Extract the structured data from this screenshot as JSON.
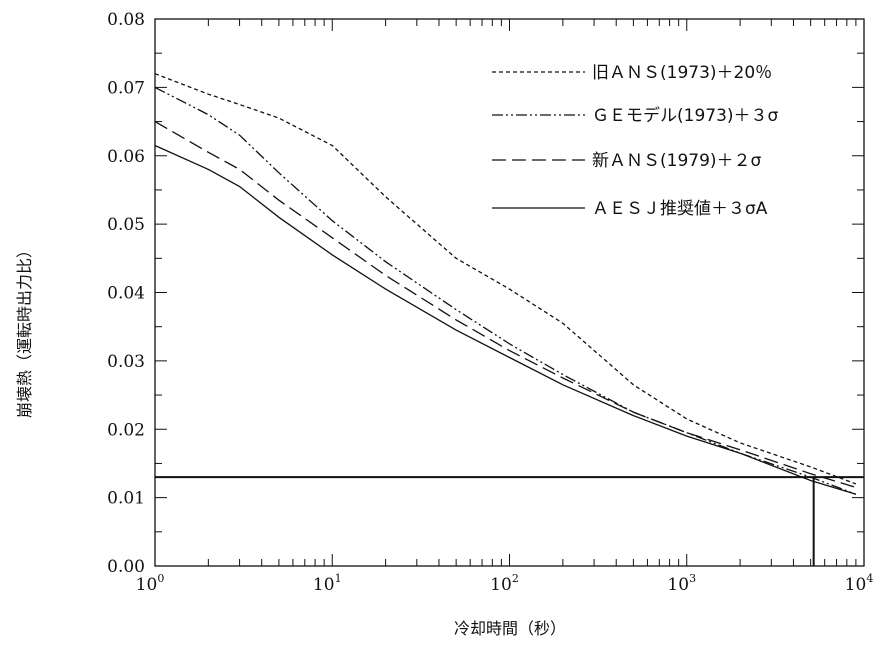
{
  "chart_data": {
    "type": "line",
    "xlabel": "冷却時間（秒）",
    "ylabel": "崩壊熱（運転時出力比）",
    "xscale": "log",
    "xlim": [
      1,
      10000
    ],
    "ylim": [
      0.0,
      0.08
    ],
    "x_ticks": [
      {
        "base": "10",
        "exp": "0"
      },
      {
        "base": "10",
        "exp": "1"
      },
      {
        "base": "10",
        "exp": "2"
      },
      {
        "base": "10",
        "exp": "3"
      },
      {
        "base": "10",
        "exp": "4"
      }
    ],
    "y_ticks": [
      "0.00",
      "0.01",
      "0.02",
      "0.03",
      "0.04",
      "0.05",
      "0.06",
      "0.07",
      "0.08"
    ],
    "legend_position": "top-right",
    "grid": false,
    "series": [
      {
        "name": "旧ＡＮＳ(1973)＋20％",
        "dash": "short-dash",
        "points": [
          [
            1,
            0.072
          ],
          [
            2,
            0.069
          ],
          [
            3,
            0.0675
          ],
          [
            5,
            0.0655
          ],
          [
            10,
            0.0615
          ],
          [
            20,
            0.054
          ],
          [
            50,
            0.045
          ],
          [
            100,
            0.0405
          ],
          [
            200,
            0.0355
          ],
          [
            500,
            0.0265
          ],
          [
            1000,
            0.0215
          ],
          [
            2000,
            0.018
          ],
          [
            5000,
            0.0145
          ],
          [
            9000,
            0.012
          ]
        ]
      },
      {
        "name": "ＧＥモデル(1973)＋３σ",
        "dash": "dash-dot",
        "points": [
          [
            1,
            0.07
          ],
          [
            2,
            0.066
          ],
          [
            3,
            0.063
          ],
          [
            5,
            0.0575
          ],
          [
            10,
            0.0505
          ],
          [
            20,
            0.0445
          ],
          [
            50,
            0.0375
          ],
          [
            100,
            0.0325
          ],
          [
            200,
            0.028
          ],
          [
            500,
            0.0225
          ],
          [
            1000,
            0.0195
          ],
          [
            2000,
            0.0165
          ],
          [
            5000,
            0.013
          ],
          [
            9000,
            0.0105
          ]
        ]
      },
      {
        "name": "新ＡＮＳ(1979)＋２σ",
        "dash": "long-dash",
        "points": [
          [
            1,
            0.065
          ],
          [
            2,
            0.0605
          ],
          [
            3,
            0.058
          ],
          [
            5,
            0.0535
          ],
          [
            10,
            0.048
          ],
          [
            20,
            0.0425
          ],
          [
            50,
            0.036
          ],
          [
            100,
            0.0315
          ],
          [
            200,
            0.0275
          ],
          [
            500,
            0.0225
          ],
          [
            1000,
            0.0195
          ],
          [
            2000,
            0.017
          ],
          [
            5000,
            0.0135
          ],
          [
            9000,
            0.0115
          ]
        ]
      },
      {
        "name": "ＡＥＳＪ推奨値＋３σA",
        "dash": "solid",
        "points": [
          [
            1,
            0.0615
          ],
          [
            2,
            0.058
          ],
          [
            3,
            0.0555
          ],
          [
            5,
            0.051
          ],
          [
            10,
            0.0455
          ],
          [
            20,
            0.0405
          ],
          [
            50,
            0.0345
          ],
          [
            100,
            0.0305
          ],
          [
            200,
            0.0265
          ],
          [
            500,
            0.022
          ],
          [
            1000,
            0.019
          ],
          [
            2000,
            0.0165
          ],
          [
            5000,
            0.0125
          ],
          [
            9000,
            0.0105
          ]
        ]
      }
    ],
    "reference_lines": {
      "horizontal_y": 0.013,
      "vertical_x": 5200
    }
  }
}
